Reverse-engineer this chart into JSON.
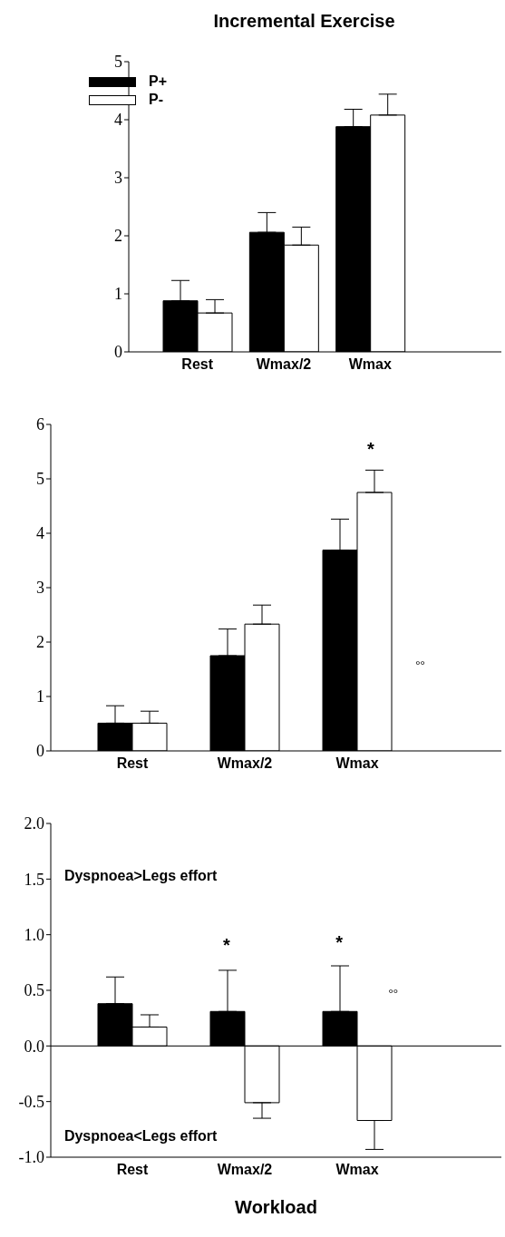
{
  "chart_data": [
    {
      "type": "bar",
      "title": "Incremental Exercise",
      "categories": [
        "Rest",
        "Wmax/2",
        "Wmax"
      ],
      "series": [
        {
          "name": "P+",
          "color": "#000000",
          "values": [
            0.88,
            2.06,
            3.88
          ],
          "errors": [
            [
              0.88,
              1.23
            ],
            [
              2.06,
              2.4
            ],
            [
              3.88,
              4.18
            ]
          ]
        },
        {
          "name": "P-",
          "color": "#ffffff",
          "values": [
            0.67,
            1.84,
            4.08
          ],
          "errors": [
            [
              0.67,
              0.9
            ],
            [
              1.84,
              2.15
            ],
            [
              4.08,
              4.44
            ]
          ]
        }
      ],
      "ylim": [
        0,
        5
      ],
      "yticks": [
        0,
        1,
        2,
        3,
        4,
        5
      ],
      "legend": "top left"
    },
    {
      "type": "bar",
      "categories": [
        "Rest",
        "Wmax/2",
        "Wmax"
      ],
      "series": [
        {
          "color": "#000000",
          "values": [
            0.51,
            1.75,
            3.69
          ],
          "errors": [
            [
              0.51,
              0.83
            ],
            [
              1.75,
              2.24
            ],
            [
              3.69,
              4.26
            ]
          ]
        },
        {
          "color": "#ffffff",
          "values": [
            0.51,
            2.33,
            4.75
          ],
          "errors": [
            [
              0.51,
              0.73
            ],
            [
              2.33,
              2.68
            ],
            [
              4.75,
              5.16
            ]
          ]
        }
      ],
      "ylim": [
        0,
        6
      ],
      "yticks": [
        0,
        1,
        2,
        3,
        4,
        5,
        6
      ],
      "annotations": [
        "*",
        "°°"
      ]
    },
    {
      "type": "bar",
      "categories": [
        "Rest",
        "Wmax/2",
        "Wmax"
      ],
      "xlabel": "Workload",
      "series": [
        {
          "color": "#000000",
          "values": [
            0.38,
            0.31,
            0.31
          ],
          "errors": [
            [
              0.38,
              0.62
            ],
            [
              0.31,
              0.68
            ],
            [
              0.31,
              0.72
            ]
          ]
        },
        {
          "color": "#ffffff",
          "values": [
            0.17,
            -0.51,
            -0.67
          ],
          "errors": [
            [
              0.17,
              0.28
            ],
            [
              -0.65,
              -0.51
            ],
            [
              -0.93,
              -0.67
            ]
          ]
        }
      ],
      "ylim": [
        -1,
        2
      ],
      "yticks": [
        {
          "value": -1,
          "label": "-1.0"
        },
        {
          "value": -0.5,
          "label": "-0.5"
        },
        {
          "value": 0,
          "label": "0.0"
        },
        {
          "value": 0.5,
          "label": "0.5"
        },
        {
          "value": 1,
          "label": "1.0"
        },
        {
          "value": 1.5,
          "label": "1.5"
        },
        {
          "value": 2,
          "label": "2.0"
        }
      ],
      "ref_lines": [
        {
          "axis": "y",
          "value": 0
        }
      ],
      "annotations": [
        "Dyspnoea>Legs effort",
        "Dyspnoea<Legs effort",
        "*",
        "*",
        "°°"
      ]
    }
  ]
}
